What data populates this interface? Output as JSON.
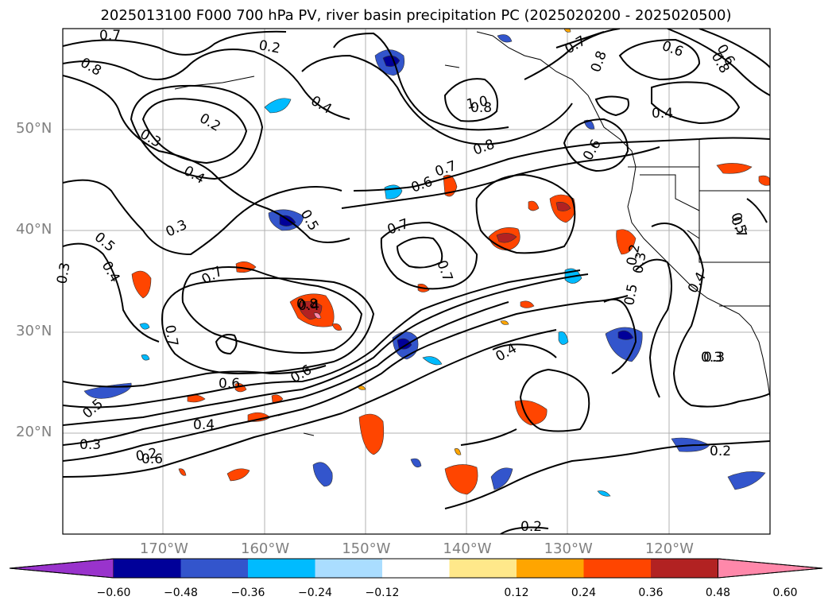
{
  "title": "2025013100 F000 700 hPa PV, river basin precipitation PC (2025020200 - 2025020500)",
  "map": {
    "lat_labels": [
      {
        "text": "50°N",
        "lat": 50
      },
      {
        "text": "40°N",
        "lat": 40
      },
      {
        "text": "30°N",
        "lat": 30
      },
      {
        "text": "20°N",
        "lat": 20
      }
    ],
    "lon_labels": [
      {
        "text": "170°W",
        "lon": -170
      },
      {
        "text": "160°W",
        "lon": -160
      },
      {
        "text": "150°W",
        "lon": -150
      },
      {
        "text": "140°W",
        "lon": -140
      },
      {
        "text": "130°W",
        "lon": -130
      },
      {
        "text": "120°W",
        "lon": -120
      }
    ],
    "contour_labels": [
      "0.7",
      "0.8",
      "0.3",
      "0.2",
      "0.2",
      "0.3",
      "0.4",
      "0.4",
      "0.5",
      "0.5",
      "0.4",
      "0.3",
      "0.7",
      "0.7",
      "0.8",
      "0.6",
      "0.6",
      "0.4",
      "0.3",
      "0.2",
      "0.5",
      "0.7",
      "0.7",
      "1.0",
      "0.8",
      "0.7",
      "0.6",
      "0.6",
      "0.7",
      "0.4",
      "0.6",
      "0.8",
      "0.6",
      "0.8",
      "0.7",
      "0.4",
      "0.5",
      "0.3",
      "0.4",
      "0.2",
      "0.3",
      "0.2",
      "0.2",
      "0.6",
      "0.4",
      "0.5",
      "0.3",
      "0.8"
    ]
  },
  "colorbar": {
    "colors": [
      "#9933cc",
      "#000099",
      "#3355cc",
      "#00bbff",
      "#aaddff",
      "#ffffff",
      "#ffe88a",
      "#ffa500",
      "#ff4500",
      "#b22222",
      "#ff88aa"
    ],
    "tick_labels": [
      "−0.60",
      "−0.48",
      "−0.36",
      "−0.24",
      "−0.12",
      "0.12",
      "0.24",
      "0.36",
      "0.48",
      "0.60"
    ]
  }
}
